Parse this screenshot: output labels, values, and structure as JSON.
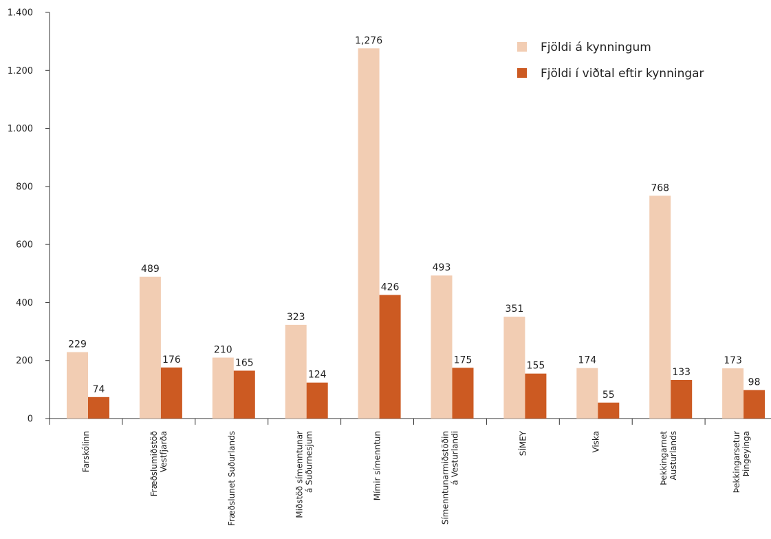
{
  "chart_data": {
    "type": "bar",
    "categories": [
      [
        "Farskólinn"
      ],
      [
        "Fræðslumiðstöð",
        "Vestfjarða"
      ],
      [
        "Fræðslunet Suðurlands"
      ],
      [
        "Miðstöð símenntunar",
        "á Suðurnesjum"
      ],
      [
        "Mímir símenntun"
      ],
      [
        "Símenntunarmiðstöðin",
        "á Vesturlandi"
      ],
      [
        "SÍMEY"
      ],
      [
        "Viska"
      ],
      [
        "Þekkingarnet",
        "Austurlands"
      ],
      [
        "Þekkingarsetur",
        "Þingeyinga"
      ]
    ],
    "series": [
      {
        "name": "Fjöldi á kynningum",
        "color": "#F2CDB3",
        "values": [
          229,
          489,
          210,
          323,
          1276,
          493,
          351,
          174,
          768,
          173
        ],
        "labels": [
          "229",
          "489",
          "210",
          "323",
          "1,276",
          "493",
          "351",
          "174",
          "768",
          "173"
        ]
      },
      {
        "name": "Fjöldi í viðtal eftir kynningar",
        "color": "#CC5A22",
        "values": [
          74,
          176,
          165,
          124,
          426,
          175,
          155,
          55,
          133,
          98
        ],
        "labels": [
          "74",
          "176",
          "165",
          "124",
          "426",
          "175",
          "155",
          "55",
          "133",
          "98"
        ]
      }
    ],
    "ylim": [
      0,
      1400
    ],
    "yticks": [
      0,
      200,
      400,
      600,
      800,
      1000,
      1200,
      1400
    ],
    "ytick_labels": [
      "0",
      "200",
      "400",
      "600",
      "800",
      "1.000",
      "1.200",
      "1.400"
    ],
    "grid": false,
    "legend": "top-right"
  }
}
